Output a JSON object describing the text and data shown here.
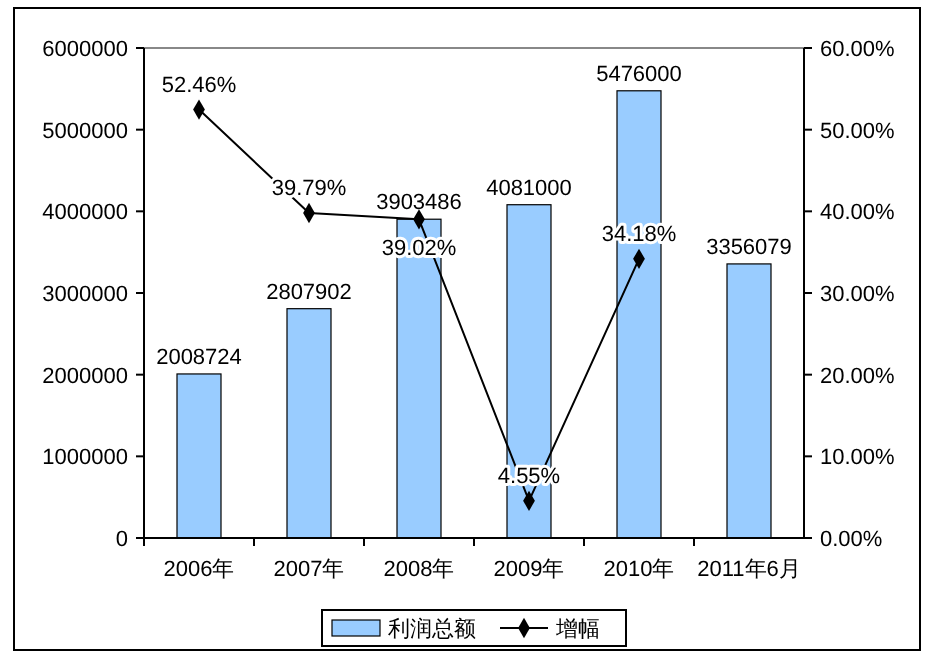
{
  "chart_data": {
    "type": "bar",
    "categories": [
      "2006年",
      "2007年",
      "2008年",
      "2009年",
      "2010年",
      "2011年6月"
    ],
    "series": [
      {
        "name": "利润总额",
        "color": "#99ccff",
        "values": [
          2008724,
          2807902,
          3903486,
          4081000,
          5476000,
          3356079
        ],
        "value_labels": [
          "2008724",
          "2807902",
          "3903486",
          "4081000",
          "5476000",
          "3356079"
        ]
      },
      {
        "name": "增幅",
        "type": "line",
        "axis": "y2",
        "color": "#000000",
        "marker": "diamond",
        "values": [
          52.46,
          39.79,
          39.02,
          4.55,
          34.18,
          null
        ],
        "value_labels": [
          "52.46%",
          "39.79%",
          "39.02%",
          "4.55%",
          "34.18%",
          null
        ]
      }
    ],
    "ylim": [
      0,
      6000000
    ],
    "yticks": [
      0,
      1000000,
      2000000,
      3000000,
      4000000,
      5000000,
      6000000
    ],
    "y2lim": [
      0,
      60
    ],
    "y2ticks": [
      {
        "value": 0,
        "label": "0.00%"
      },
      {
        "value": 10,
        "label": "10.00%"
      },
      {
        "value": 20,
        "label": "20.00%"
      },
      {
        "value": 30,
        "label": "30.00%"
      },
      {
        "value": 40,
        "label": "40.00%"
      },
      {
        "value": 50,
        "label": "50.00%"
      },
      {
        "value": 60,
        "label": "60.00%"
      }
    ],
    "grid": false,
    "legend": "bottom"
  }
}
